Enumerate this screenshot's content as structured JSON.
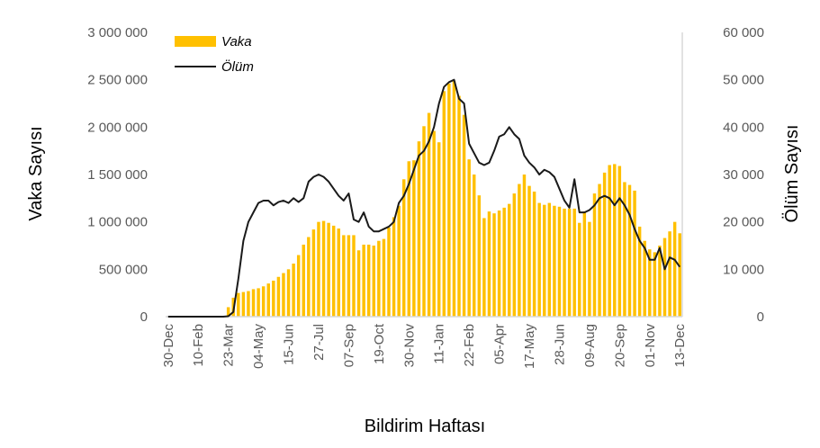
{
  "chart_data": {
    "type": "bar+line",
    "xlabel": "Bildirim Haftası",
    "ylabel_left": "Vaka Sayısı",
    "ylabel_right": "Ölüm Sayısı",
    "ylim_left": [
      0,
      3000000
    ],
    "ylim_right": [
      0,
      60000
    ],
    "yticks_left": [
      "0",
      "500 000",
      "1 000 000",
      "1 500 000",
      "2 000 000",
      "2 500 000",
      "3 000 000"
    ],
    "yticks_right": [
      "0",
      "10 000",
      "20 000",
      "30 000",
      "40 000",
      "50 000",
      "60 000"
    ],
    "x_tick_labels": [
      "30-Dec",
      "10-Feb",
      "23-Mar",
      "04-May",
      "15-Jun",
      "27-Jul",
      "07-Sep",
      "19-Oct",
      "30-Nov",
      "11-Jan",
      "22-Feb",
      "05-Apr",
      "17-May",
      "28-Jun",
      "09-Aug",
      "20-Sep",
      "01-Nov",
      "13-Dec"
    ],
    "legend": {
      "position": "top-left",
      "entries": [
        "Vaka",
        "Ölüm"
      ]
    },
    "grid": false,
    "colors": {
      "cases": "#FFC000",
      "deaths": "#1a1a1a",
      "axis": "#d9d9d9",
      "text": "#595959"
    },
    "weeks_count": 103,
    "series": [
      {
        "name": "Vaka",
        "axis": "left",
        "type": "bar",
        "values": [
          0,
          0,
          0,
          0,
          0,
          0,
          0,
          0,
          0,
          0,
          0,
          0,
          100000,
          200000,
          250000,
          260000,
          270000,
          290000,
          300000,
          320000,
          350000,
          380000,
          420000,
          460000,
          500000,
          560000,
          650000,
          760000,
          840000,
          920000,
          1000000,
          1010000,
          990000,
          960000,
          930000,
          860000,
          860000,
          860000,
          700000,
          760000,
          760000,
          750000,
          800000,
          820000,
          940000,
          1050000,
          1170000,
          1450000,
          1640000,
          1650000,
          1850000,
          2010000,
          2150000,
          1960000,
          1840000,
          2380000,
          2460000,
          2490000,
          2330000,
          2130000,
          1660000,
          1500000,
          1280000,
          1040000,
          1110000,
          1090000,
          1120000,
          1150000,
          1190000,
          1300000,
          1400000,
          1500000,
          1380000,
          1320000,
          1200000,
          1180000,
          1200000,
          1170000,
          1160000,
          1140000,
          1140000,
          1140000,
          990000,
          1110000,
          1000000,
          1300000,
          1400000,
          1520000,
          1600000,
          1610000,
          1590000,
          1420000,
          1390000,
          1330000,
          950000,
          800000,
          710000,
          680000,
          750000,
          830000,
          900000,
          1000000,
          880000
        ]
      },
      {
        "name": "Ölüm",
        "axis": "right",
        "type": "line",
        "values": [
          0,
          0,
          0,
          0,
          0,
          0,
          0,
          0,
          0,
          0,
          0,
          0,
          100,
          1000,
          8000,
          16000,
          20000,
          22000,
          24000,
          24500,
          24500,
          23500,
          24200,
          24500,
          24000,
          25000,
          24200,
          25000,
          28500,
          29500,
          30000,
          29500,
          28500,
          27000,
          25500,
          24500,
          26000,
          20500,
          20000,
          22000,
          19000,
          18000,
          18000,
          18500,
          19000,
          20000,
          24000,
          25500,
          28000,
          31000,
          34000,
          35000,
          37000,
          40000,
          45000,
          48500,
          49500,
          50000,
          46000,
          45000,
          36500,
          34500,
          32500,
          32000,
          32500,
          35000,
          38000,
          38500,
          40000,
          38500,
          37500,
          34000,
          32500,
          31500,
          30000,
          31000,
          30500,
          29500,
          27000,
          24500,
          23000,
          29000,
          22000,
          22000,
          22500,
          23500,
          25000,
          25500,
          25000,
          23500,
          25000,
          23500,
          21500,
          18500,
          16000,
          14500,
          12000,
          12000,
          14500,
          10000,
          12500,
          12000,
          10500
        ]
      }
    ]
  }
}
